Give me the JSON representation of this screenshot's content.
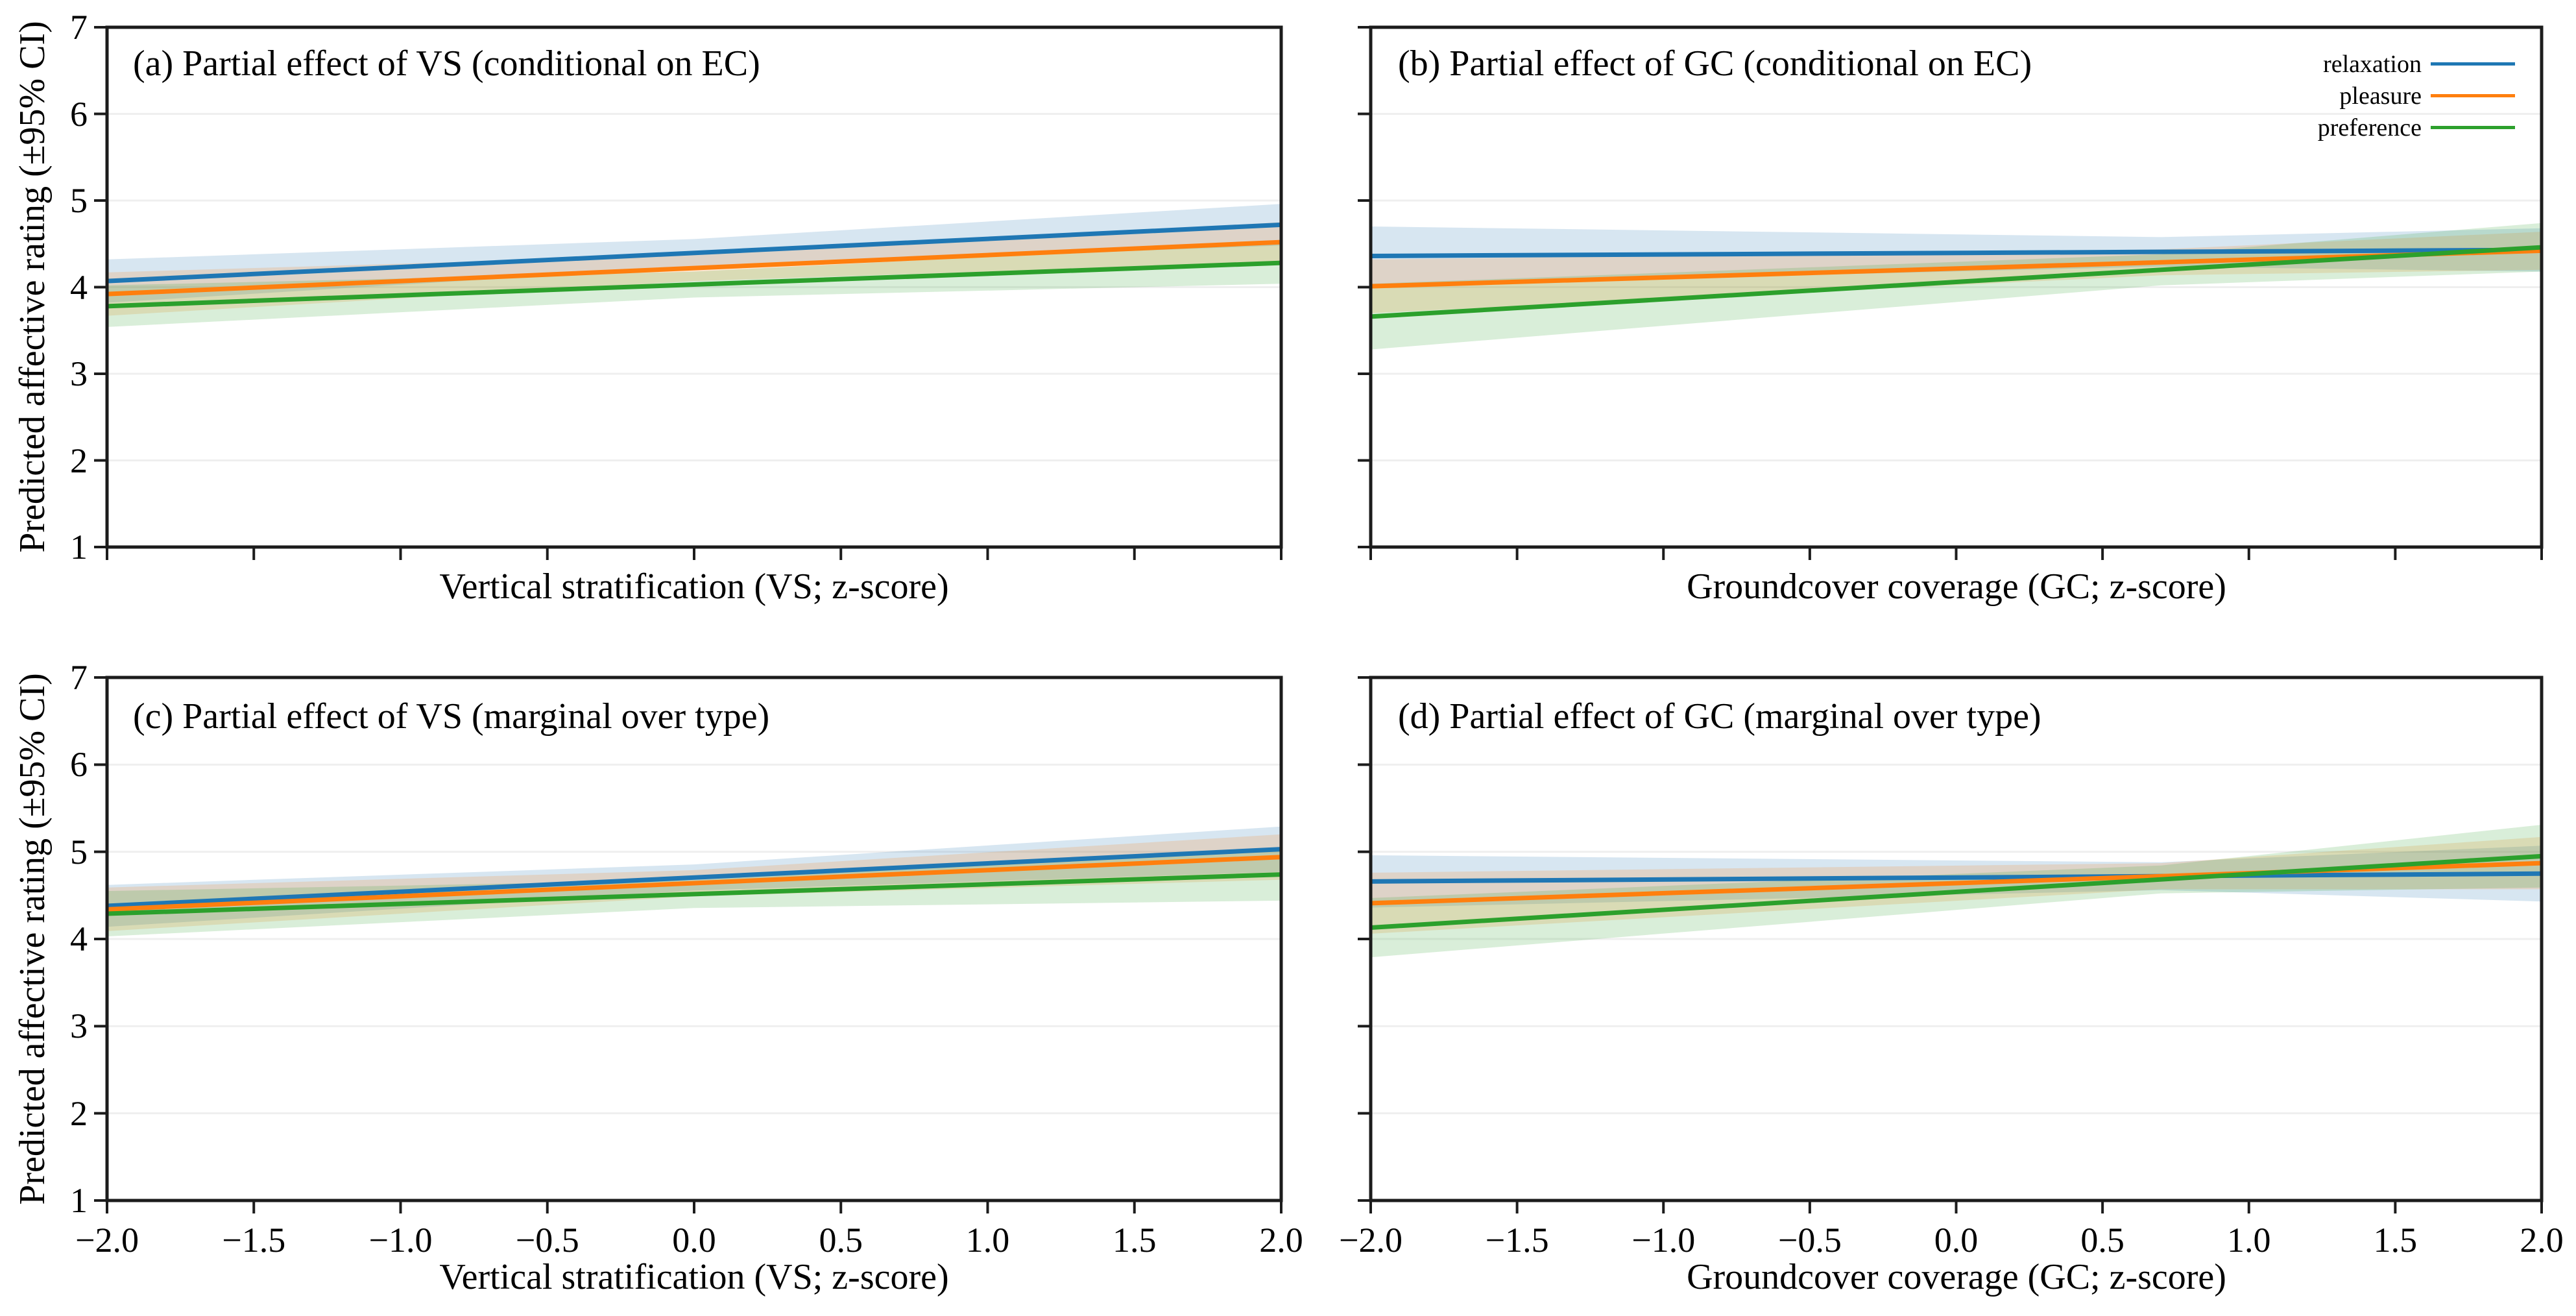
{
  "figure": {
    "background": "#ffffff",
    "ylabel": "Predicted affective rating (±95% CI)",
    "legend": {
      "location": "upper right of panel (b)",
      "entries": [
        {
          "label": "relaxation",
          "color": "#1f77b4"
        },
        {
          "label": "pleasure",
          "color": "#ff7f0e"
        },
        {
          "label": "preference",
          "color": "#2ca02c"
        }
      ]
    },
    "colors": {
      "relaxation": "#1f77b4",
      "pleasure": "#ff7f0e",
      "preference": "#2ca02c",
      "spine": "#1c1c1c",
      "gridline": "#efefef"
    },
    "band_opacity": 0.18
  },
  "chart_data": [
    {
      "id": "a",
      "type": "line",
      "title": "(a) Partial effect of VS (conditional on EC)",
      "xlabel": "Vertical stratification (VS; z-score)",
      "ylabel": "Predicted affective rating (±95% CI)",
      "xlim": [
        -2,
        2
      ],
      "ylim": [
        1,
        7
      ],
      "grid": "horizontal",
      "xticks": [
        -2.0,
        -1.5,
        -1.0,
        -0.5,
        0.0,
        0.5,
        1.0,
        1.5,
        2.0
      ],
      "xtick_labels": [],
      "yticks": [
        1,
        2,
        3,
        4,
        5,
        6,
        7
      ],
      "ytick_labels": [
        "1",
        "2",
        "3",
        "4",
        "5",
        "6",
        "7"
      ],
      "x": [
        -2,
        2
      ],
      "ci_x": [
        -2,
        0,
        2
      ],
      "series": [
        {
          "name": "relaxation",
          "color": "#1f77b4",
          "y": [
            4.07,
            4.72
          ],
          "ci_half": [
            0.25,
            0.16,
            0.24
          ]
        },
        {
          "name": "pleasure",
          "color": "#ff7f0e",
          "y": [
            3.92,
            4.52
          ],
          "ci_half": [
            0.25,
            0.15,
            0.23
          ]
        },
        {
          "name": "preference",
          "color": "#2ca02c",
          "y": [
            3.78,
            4.28
          ],
          "ci_half": [
            0.24,
            0.15,
            0.24
          ]
        }
      ]
    },
    {
      "id": "b",
      "type": "line",
      "title": "(b) Partial effect of GC (conditional on EC)",
      "xlabel": "Groundcover coverage (GC; z-score)",
      "ylabel": "",
      "xlim": [
        -2,
        2
      ],
      "ylim": [
        1,
        7
      ],
      "grid": "horizontal",
      "xticks": [
        -2.0,
        -1.5,
        -1.0,
        -0.5,
        0.0,
        0.5,
        1.0,
        1.5,
        2.0
      ],
      "xtick_labels": [],
      "yticks": [
        1,
        2,
        3,
        4,
        5,
        6,
        7
      ],
      "ytick_labels": [],
      "x": [
        -2,
        2
      ],
      "ci_x": [
        -2,
        0.7,
        2
      ],
      "series": [
        {
          "name": "relaxation",
          "color": "#1f77b4",
          "y": [
            4.36,
            4.43
          ],
          "ci_half": [
            0.34,
            0.17,
            0.25
          ]
        },
        {
          "name": "pleasure",
          "color": "#ff7f0e",
          "y": [
            4.01,
            4.42
          ],
          "ci_half": [
            0.31,
            0.15,
            0.22
          ]
        },
        {
          "name": "preference",
          "color": "#2ca02c",
          "y": [
            3.66,
            4.46
          ],
          "ci_half": [
            0.38,
            0.18,
            0.28
          ]
        }
      ]
    },
    {
      "id": "c",
      "type": "line",
      "title": "(c) Partial effect of VS (marginal over type)",
      "xlabel": "Vertical stratification (VS; z-score)",
      "ylabel": "Predicted affective rating (±95% CI)",
      "xlim": [
        -2,
        2
      ],
      "ylim": [
        1,
        7
      ],
      "grid": "horizontal",
      "xticks": [
        -2.0,
        -1.5,
        -1.0,
        -0.5,
        0.0,
        0.5,
        1.0,
        1.5,
        2.0
      ],
      "xtick_labels": [
        "−2.0",
        "−1.5",
        "−1.0",
        "−0.5",
        "0.0",
        "0.5",
        "1.0",
        "1.5",
        "2.0"
      ],
      "yticks": [
        1,
        2,
        3,
        4,
        5,
        6,
        7
      ],
      "ytick_labels": [
        "1",
        "2",
        "3",
        "4",
        "5",
        "6",
        "7"
      ],
      "x": [
        -2,
        2
      ],
      "ci_x": [
        -2,
        0,
        2
      ],
      "series": [
        {
          "name": "relaxation",
          "color": "#1f77b4",
          "y": [
            4.38,
            5.03
          ],
          "ci_half": [
            0.24,
            0.15,
            0.26
          ]
        },
        {
          "name": "pleasure",
          "color": "#ff7f0e",
          "y": [
            4.34,
            4.94
          ],
          "ci_half": [
            0.25,
            0.15,
            0.26
          ]
        },
        {
          "name": "preference",
          "color": "#2ca02c",
          "y": [
            4.29,
            4.74
          ],
          "ci_half": [
            0.26,
            0.16,
            0.3
          ]
        }
      ]
    },
    {
      "id": "d",
      "type": "line",
      "title": "(d) Partial effect of GC (marginal over type)",
      "xlabel": "Groundcover coverage (GC; z-score)",
      "ylabel": "",
      "xlim": [
        -2,
        2
      ],
      "ylim": [
        1,
        7
      ],
      "grid": "horizontal",
      "xticks": [
        -2.0,
        -1.5,
        -1.0,
        -0.5,
        0.0,
        0.5,
        1.0,
        1.5,
        2.0
      ],
      "xtick_labels": [
        "−2.0",
        "−1.5",
        "−1.0",
        "−0.5",
        "0.0",
        "0.5",
        "1.0",
        "1.5",
        "2.0"
      ],
      "yticks": [
        1,
        2,
        3,
        4,
        5,
        6,
        7
      ],
      "ytick_labels": [],
      "x": [
        -2,
        2
      ],
      "ci_x": [
        -2,
        0.7,
        2
      ],
      "series": [
        {
          "name": "relaxation",
          "color": "#1f77b4",
          "y": [
            4.66,
            4.75
          ],
          "ci_half": [
            0.3,
            0.16,
            0.32
          ]
        },
        {
          "name": "pleasure",
          "color": "#ff7f0e",
          "y": [
            4.41,
            4.87
          ],
          "ci_half": [
            0.35,
            0.15,
            0.3
          ]
        },
        {
          "name": "preference",
          "color": "#2ca02c",
          "y": [
            4.13,
            4.95
          ],
          "ci_half": [
            0.34,
            0.16,
            0.36
          ]
        }
      ]
    }
  ]
}
